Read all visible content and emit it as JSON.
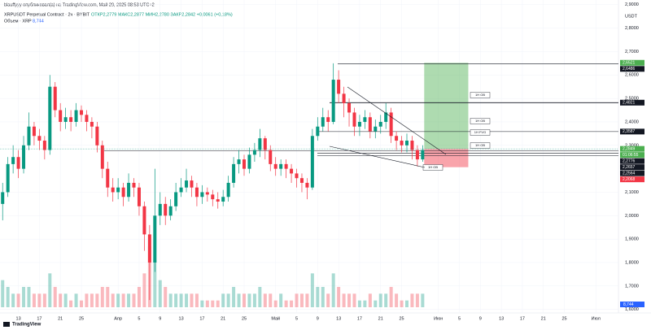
{
  "header": {
    "publisher": "blauffyyy опубликовал(а) на TradingView.com, Май 29, 2025 08:53 UTC+2",
    "symbol": "XRPUSDT Perpetual Contract · 2ч · BYBIT",
    "ohlc": "ОТКР2,2779  МАКС2,2877  МИН2,2780  ЗАКР2,2842  +0,0061 (+0,18%)",
    "volume_label": "Объем · XRP",
    "volume_value": "8,744"
  },
  "chart_data": {
    "type": "candlestick",
    "currency": "USDT",
    "xlim": [
      -0.5,
      117.3
    ],
    "ylim": [
      1.585,
      2.92
    ],
    "xticks": [
      {
        "value": 3,
        "label": "13"
      },
      {
        "value": 7,
        "label": "17"
      },
      {
        "value": 11,
        "label": "21"
      },
      {
        "value": 15,
        "label": "25"
      },
      {
        "value": 22,
        "label": "Апр"
      },
      {
        "value": 26,
        "label": "5"
      },
      {
        "value": 30,
        "label": "9"
      },
      {
        "value": 34,
        "label": "13"
      },
      {
        "value": 38,
        "label": "17"
      },
      {
        "value": 42,
        "label": "21"
      },
      {
        "value": 46,
        "label": "25"
      },
      {
        "value": 52,
        "label": "Май"
      },
      {
        "value": 56,
        "label": "5"
      },
      {
        "value": 60,
        "label": "9"
      },
      {
        "value": 64,
        "label": "13"
      },
      {
        "value": 68,
        "label": "17"
      },
      {
        "value": 72,
        "label": "21"
      },
      {
        "value": 76,
        "label": "25"
      },
      {
        "value": 83,
        "label": "Июн"
      },
      {
        "value": 87,
        "label": "5"
      },
      {
        "value": 91,
        "label": "9"
      },
      {
        "value": 95,
        "label": "13"
      },
      {
        "value": 99,
        "label": "17"
      },
      {
        "value": 103,
        "label": "21"
      },
      {
        "value": 107,
        "label": "25"
      },
      {
        "value": 113,
        "label": "Июл"
      }
    ],
    "yticks": [
      {
        "value": 2.9,
        "label": "2,9000"
      },
      {
        "value": 2.8,
        "label": "2,8000"
      },
      {
        "value": 2.7,
        "label": "2,7000"
      },
      {
        "value": 2.6,
        "label": "2,6000"
      },
      {
        "value": 2.5,
        "label": "2,5000"
      },
      {
        "value": 2.4,
        "label": "2,4000"
      },
      {
        "value": 2.3,
        "label": "2,3000"
      },
      {
        "value": 2.1,
        "label": "2,1000"
      },
      {
        "value": 2,
        "label": "2,0000"
      },
      {
        "value": 1.9,
        "label": "1,9000"
      },
      {
        "value": 1.8,
        "label": "1,8000"
      },
      {
        "value": 1.7,
        "label": "1,7000"
      },
      {
        "value": 1.6,
        "label": "1,6000"
      }
    ],
    "up_color": "#089981",
    "down_color": "#f23645",
    "open": [
      2.05,
      2.1,
      2.22,
      2.25,
      2.2,
      2.3,
      2.38,
      2.34,
      2.32,
      2.28,
      2.55,
      2.45,
      2.4,
      2.42,
      2.4,
      2.45,
      2.43,
      2.4,
      2.38,
      2.3,
      2.2,
      2.12,
      2.1,
      2.12,
      2.08,
      2.14,
      2.12,
      2.04,
      1.92,
      1.8,
      2.0,
      2.05,
      2.0,
      2.04,
      2.1,
      2.12,
      2.15,
      2.12,
      2.08,
      2.1,
      2.09,
      2.07,
      2.06,
      2.08,
      2.14,
      2.22,
      2.24,
      2.2,
      2.26,
      2.28,
      2.33,
      2.28,
      2.22,
      2.2,
      2.22,
      2.2,
      2.18,
      2.16,
      2.14,
      2.12,
      2.34,
      2.38,
      2.42,
      2.4,
      2.58,
      2.52,
      2.48,
      2.44,
      2.38,
      2.4,
      2.42,
      2.36,
      2.38,
      2.4,
      2.44,
      2.34,
      2.32,
      2.3,
      2.32,
      2.28,
      2.24
    ],
    "high": [
      2.14,
      2.25,
      2.3,
      2.28,
      2.34,
      2.44,
      2.4,
      2.37,
      2.34,
      2.6,
      2.57,
      2.48,
      2.46,
      2.45,
      2.48,
      2.47,
      2.45,
      2.42,
      2.4,
      2.32,
      2.23,
      2.16,
      2.16,
      2.14,
      2.18,
      2.16,
      2.14,
      2.06,
      1.96,
      2.2,
      2.1,
      2.08,
      2.07,
      2.14,
      2.16,
      2.2,
      2.17,
      2.14,
      2.13,
      2.12,
      2.11,
      2.1,
      2.11,
      2.17,
      2.25,
      2.28,
      2.26,
      2.29,
      2.31,
      2.37,
      2.34,
      2.3,
      2.25,
      2.24,
      2.24,
      2.22,
      2.2,
      2.18,
      2.16,
      2.37,
      2.42,
      2.46,
      2.45,
      2.65,
      2.62,
      2.55,
      2.5,
      2.46,
      2.43,
      2.45,
      2.44,
      2.41,
      2.43,
      2.48,
      2.46,
      2.36,
      2.34,
      2.35,
      2.34,
      2.3,
      2.3
    ],
    "low": [
      1.98,
      2.08,
      2.18,
      2.16,
      2.18,
      2.28,
      2.3,
      2.28,
      2.24,
      2.26,
      2.42,
      2.36,
      2.37,
      2.36,
      2.38,
      2.4,
      2.36,
      2.33,
      2.27,
      2.16,
      2.08,
      2.06,
      2.07,
      2.04,
      2.06,
      2.08,
      2.0,
      1.85,
      1.64,
      1.76,
      1.96,
      1.96,
      1.98,
      2.02,
      2.08,
      2.1,
      2.08,
      2.04,
      2.05,
      2.06,
      2.04,
      2.03,
      2.04,
      2.06,
      2.12,
      2.18,
      2.17,
      2.18,
      2.23,
      2.25,
      2.24,
      2.19,
      2.17,
      2.17,
      2.16,
      2.14,
      2.12,
      2.1,
      2.07,
      2.11,
      2.32,
      2.36,
      2.36,
      2.39,
      2.48,
      2.42,
      2.38,
      2.34,
      2.34,
      2.37,
      2.33,
      2.33,
      2.35,
      2.37,
      2.31,
      2.28,
      2.27,
      2.27,
      2.24,
      2.21,
      2.23
    ],
    "close": [
      2.1,
      2.22,
      2.25,
      2.2,
      2.3,
      2.38,
      2.34,
      2.32,
      2.28,
      2.55,
      2.45,
      2.4,
      2.42,
      2.4,
      2.45,
      2.43,
      2.4,
      2.38,
      2.3,
      2.2,
      2.12,
      2.1,
      2.12,
      2.08,
      2.14,
      2.12,
      2.04,
      1.92,
      1.8,
      2.0,
      2.05,
      2.0,
      2.04,
      2.1,
      2.12,
      2.15,
      2.12,
      2.08,
      2.1,
      2.09,
      2.07,
      2.06,
      2.08,
      2.14,
      2.22,
      2.24,
      2.2,
      2.26,
      2.28,
      2.33,
      2.28,
      2.22,
      2.2,
      2.22,
      2.2,
      2.18,
      2.16,
      2.14,
      2.12,
      2.34,
      2.38,
      2.42,
      2.4,
      2.58,
      2.52,
      2.48,
      2.44,
      2.38,
      2.4,
      2.42,
      2.36,
      2.38,
      2.4,
      2.44,
      2.34,
      2.32,
      2.3,
      2.32,
      2.28,
      2.24,
      2.28
    ],
    "volume": [
      4,
      3,
      2,
      2,
      3,
      3,
      2,
      2,
      2,
      5,
      3,
      2,
      2,
      1,
      2,
      1,
      2,
      2,
      2,
      3,
      3,
      2,
      2,
      2,
      2,
      2,
      3,
      5,
      9,
      7,
      4,
      3,
      2,
      2,
      2,
      2,
      2,
      2,
      1,
      1,
      1,
      1,
      2,
      2,
      3,
      2,
      2,
      2,
      2,
      3,
      2,
      2,
      1,
      2,
      1,
      1,
      2,
      2,
      2,
      5,
      3,
      3,
      2,
      5,
      3,
      2,
      2,
      2,
      1,
      1,
      2,
      1,
      2,
      2,
      3,
      2,
      1,
      1,
      2,
      2,
      2
    ],
    "volume_lim": [
      0,
      12
    ],
    "position": {
      "entry": 2.2849,
      "target": 2.6521,
      "stop": 2.2068
    },
    "levels": [
      2.6486,
      2.4821,
      2.3587,
      2.2776,
      2.2657,
      2.2564
    ],
    "price_labels": [
      {
        "value": 2.6521,
        "label": "2,6521"
      },
      {
        "value": 2.6486,
        "label": "2,6486"
      },
      {
        "value": 2.4821,
        "label": "2,4821"
      },
      {
        "value": 2.3587,
        "label": "2,3587"
      },
      {
        "value": 2.2849,
        "label": "2,2849"
      },
      {
        "value": 2.2776,
        "label": "2,2776"
      },
      {
        "value": 2.2657,
        "label": "2,2657"
      },
      {
        "value": 2.2564,
        "label": "2,2564"
      },
      {
        "value": 2.2068,
        "label": "2,2068"
      }
    ],
    "countdown": "01:06:55",
    "zones": [
      "1H OB",
      "1H OB",
      "1H FVG",
      "1H OB",
      "1H OB"
    ]
  },
  "footer": {
    "logo": "TradingView"
  }
}
